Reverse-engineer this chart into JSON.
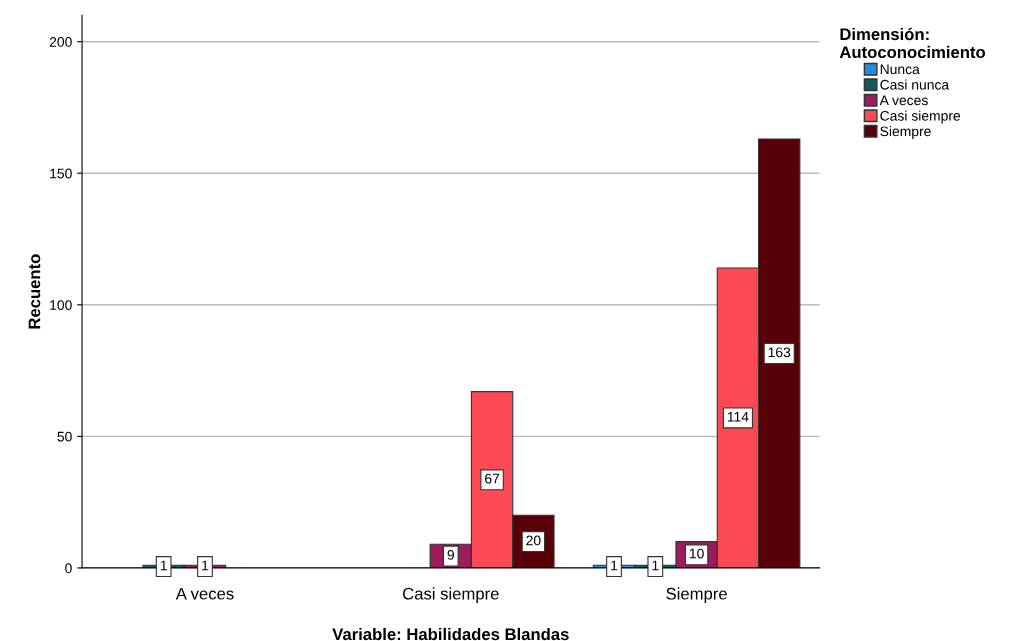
{
  "chart_data": {
    "type": "bar",
    "xlabel": "Variable: Habilidades Blandas",
    "ylabel": "Recuento",
    "legend_title": "Dimensión:\nAutoconocimiento",
    "categories": [
      "A veces",
      "Casi siempre",
      "Siempre"
    ],
    "series": [
      {
        "name": "Nunca",
        "color": "#1f8fe0",
        "values": [
          null,
          null,
          1
        ]
      },
      {
        "name": "Casi nunca",
        "color": "#0f5e5a",
        "values": [
          1,
          null,
          1
        ]
      },
      {
        "name": "A veces",
        "color": "#9c1c5c",
        "values": [
          1,
          9,
          10
        ]
      },
      {
        "name": "Casi siempre",
        "color": "#fb4a55",
        "values": [
          null,
          67,
          114
        ]
      },
      {
        "name": "Siempre",
        "color": "#580008",
        "values": [
          null,
          20,
          163
        ]
      }
    ],
    "ylim": [
      0,
      210
    ],
    "yticks": [
      0,
      50,
      100,
      150,
      200
    ],
    "grid": "y",
    "legend": "top right",
    "data_labels": true
  }
}
